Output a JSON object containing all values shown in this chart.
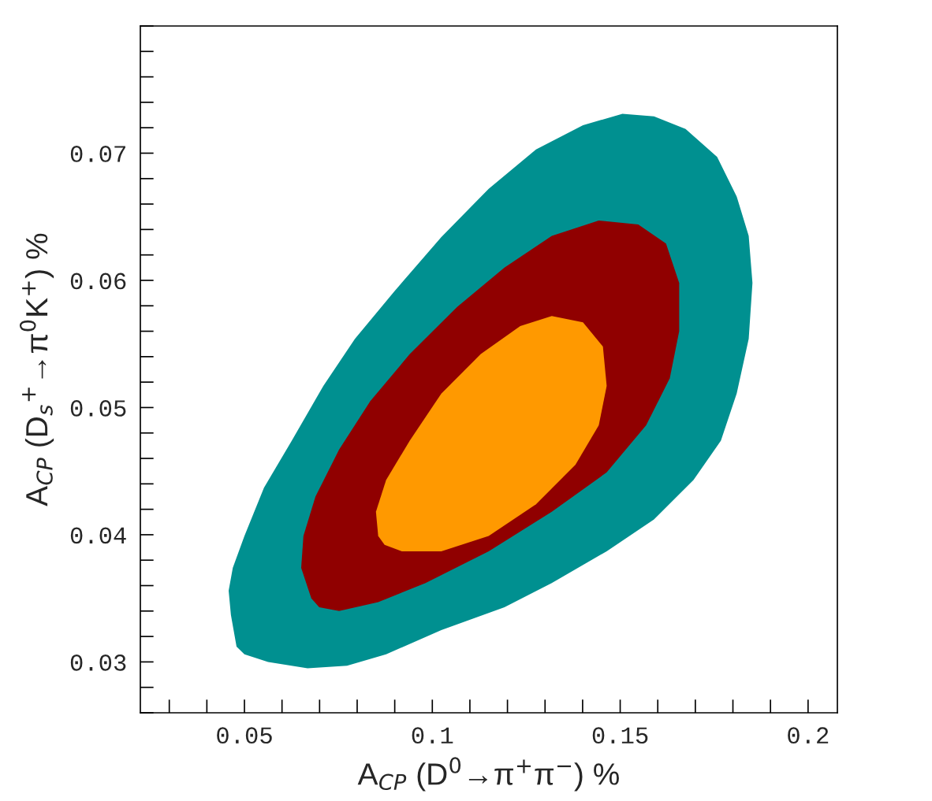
{
  "chart_data": {
    "type": "area",
    "xlabel": "A$_{CP}$ (D$^{0}$→π$^{+}$π$^{−}$) %",
    "ylabel": "A$_{CP}$ (D$_{s}$$^{+}$→π$^{0}$K$^{+}$) %",
    "xlim": [
      0.0223,
      0.2078
    ],
    "ylim": [
      0.026,
      0.08
    ],
    "xticks": [
      0.05,
      0.1,
      0.15,
      0.2
    ],
    "yticks": [
      0.03,
      0.04,
      0.05,
      0.06,
      0.07
    ],
    "series": [
      {
        "color": "#009090",
        "x": [
          0.0479,
          0.0464,
          0.0458,
          0.0469,
          0.05,
          0.0552,
          0.0626,
          0.071,
          0.0794,
          0.0898,
          0.1024,
          0.115,
          0.1276,
          0.1401,
          0.1506,
          0.159,
          0.1674,
          0.1758,
          0.181,
          0.1842,
          0.1852,
          0.1842,
          0.181,
          0.1768,
          0.1695,
          0.159,
          0.1464,
          0.1318,
          0.1192,
          0.1024,
          0.0877,
          0.0773,
          0.0668,
          0.0563,
          0.05
        ],
        "values": [
          0.0312,
          0.0337,
          0.0356,
          0.0374,
          0.0399,
          0.0437,
          0.0474,
          0.0517,
          0.0554,
          0.0591,
          0.0634,
          0.0672,
          0.0703,
          0.0722,
          0.0731,
          0.0729,
          0.0719,
          0.0697,
          0.0666,
          0.0635,
          0.0598,
          0.0554,
          0.0511,
          0.0474,
          0.0443,
          0.0412,
          0.0387,
          0.0362,
          0.0343,
          0.0325,
          0.0306,
          0.0297,
          0.0295,
          0.03,
          0.0306
        ]
      },
      {
        "color": "#900000",
        "x": [
          0.0678,
          0.0651,
          0.0657,
          0.0689,
          0.0752,
          0.0835,
          0.094,
          0.1066,
          0.1192,
          0.1318,
          0.1443,
          0.1548,
          0.1622,
          0.1657,
          0.1657,
          0.1632,
          0.1569,
          0.1464,
          0.1318,
          0.115,
          0.0982,
          0.0856,
          0.0752,
          0.0699
        ],
        "values": [
          0.035,
          0.0374,
          0.0399,
          0.043,
          0.0467,
          0.0505,
          0.0542,
          0.0579,
          0.061,
          0.0635,
          0.0647,
          0.0644,
          0.0629,
          0.0598,
          0.056,
          0.0523,
          0.0486,
          0.0449,
          0.0418,
          0.0387,
          0.0362,
          0.0347,
          0.034,
          0.0343
        ]
      },
      {
        "color": "#ff9900",
        "x": [
          0.0856,
          0.085,
          0.0877,
          0.094,
          0.1024,
          0.1129,
          0.1234,
          0.1318,
          0.1401,
          0.1454,
          0.1464,
          0.1443,
          0.1381,
          0.1276,
          0.115,
          0.1024,
          0.0919,
          0.0873
        ],
        "values": [
          0.0399,
          0.0418,
          0.0443,
          0.0474,
          0.0511,
          0.0542,
          0.0564,
          0.0572,
          0.0567,
          0.0548,
          0.0517,
          0.0486,
          0.0455,
          0.0424,
          0.0399,
          0.0387,
          0.0387,
          0.0392
        ]
      }
    ]
  }
}
